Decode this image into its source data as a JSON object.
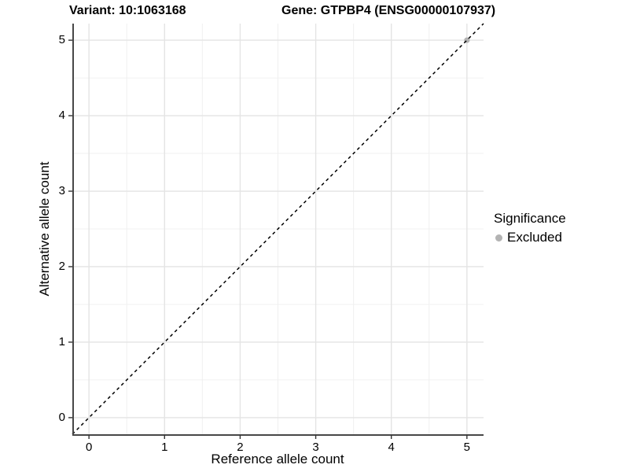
{
  "chart_data": {
    "type": "scatter",
    "title_left": "Variant: 10:1063168",
    "title_right": "Gene: GTPBP4 (ENSG00000107937)",
    "xlabel": "Reference allele count",
    "ylabel": "Alternative allele count",
    "xlim": [
      -0.22,
      5.22
    ],
    "ylim": [
      -0.22,
      5.22
    ],
    "x_ticks": [
      0,
      1,
      2,
      3,
      4,
      5
    ],
    "y_ticks": [
      0,
      1,
      2,
      3,
      4,
      5
    ],
    "x_minor": [
      0.5,
      1.5,
      2.5,
      3.5,
      4.5
    ],
    "y_minor": [
      0.5,
      1.5,
      2.5,
      3.5,
      4.5
    ],
    "grid": true,
    "reference_line": {
      "slope": 1,
      "intercept": 0,
      "style": "dashed",
      "color": "#000000"
    },
    "series": [
      {
        "name": "Excluded",
        "color": "#b3b3b3",
        "points": [
          {
            "x": 5,
            "y": 5
          }
        ]
      }
    ],
    "legend": {
      "position": "right",
      "title": "Significance",
      "items": [
        {
          "label": "Excluded",
          "color": "#b3b3b3"
        }
      ]
    },
    "colors": {
      "background": "#ffffff",
      "grid_major": "#e4e4e4",
      "grid_minor": "#f0f0f0",
      "axis_line": "#474747",
      "tick_mark": "#333333",
      "text": "#000000"
    }
  }
}
